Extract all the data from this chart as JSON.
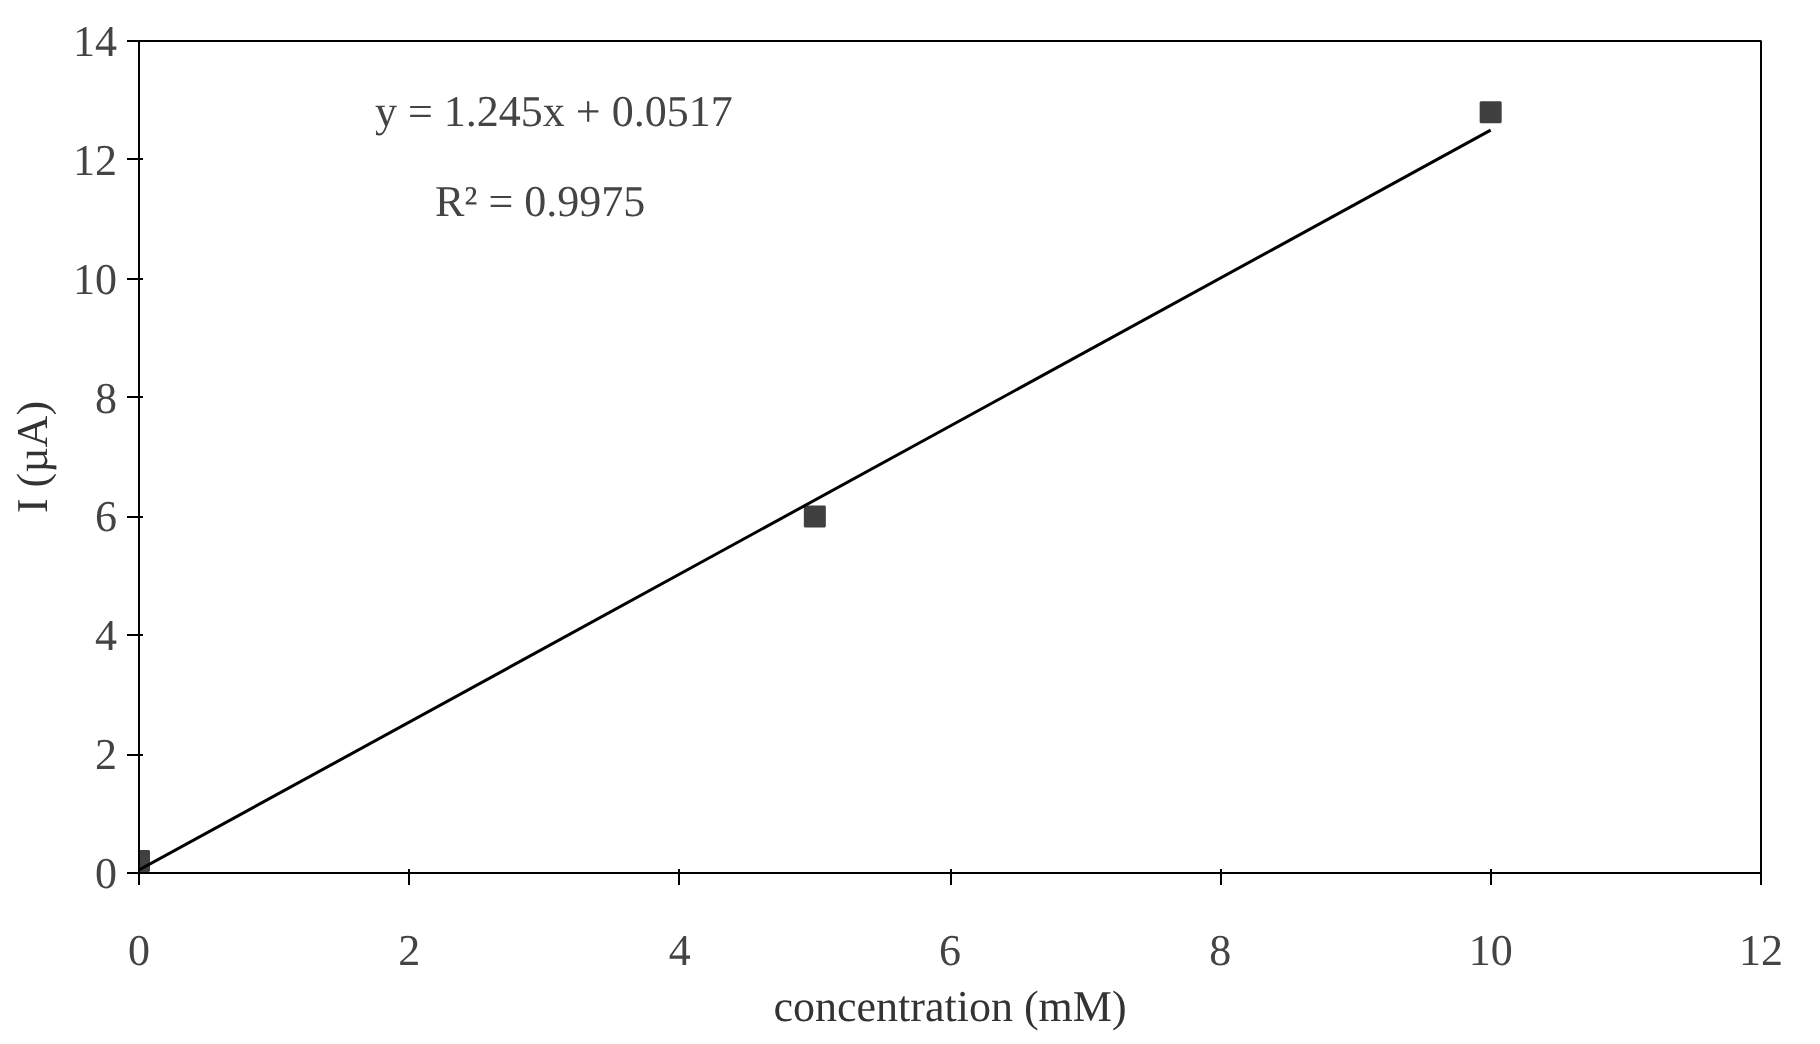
{
  "chart_data": {
    "type": "scatter",
    "xlabel": "concentration (mM)",
    "ylabel": "I (µA)",
    "xlim": [
      0,
      12
    ],
    "ylim": [
      0,
      14
    ],
    "xticks": [
      0,
      2,
      4,
      6,
      8,
      10,
      12
    ],
    "yticks": [
      0,
      2,
      4,
      6,
      8,
      10,
      12,
      14
    ],
    "grid": false,
    "annotations": [
      "y = 1.245x + 0.0517",
      "R² = 0.9975"
    ],
    "series": [
      {
        "marker": "square",
        "color": "#404040",
        "x": [
          0,
          5,
          10
        ],
        "values": [
          0.2,
          6.0,
          12.8
        ]
      },
      {
        "type": "line",
        "color": "#000000",
        "x": [
          0,
          10
        ],
        "values": [
          0.05,
          12.5
        ]
      }
    ]
  }
}
